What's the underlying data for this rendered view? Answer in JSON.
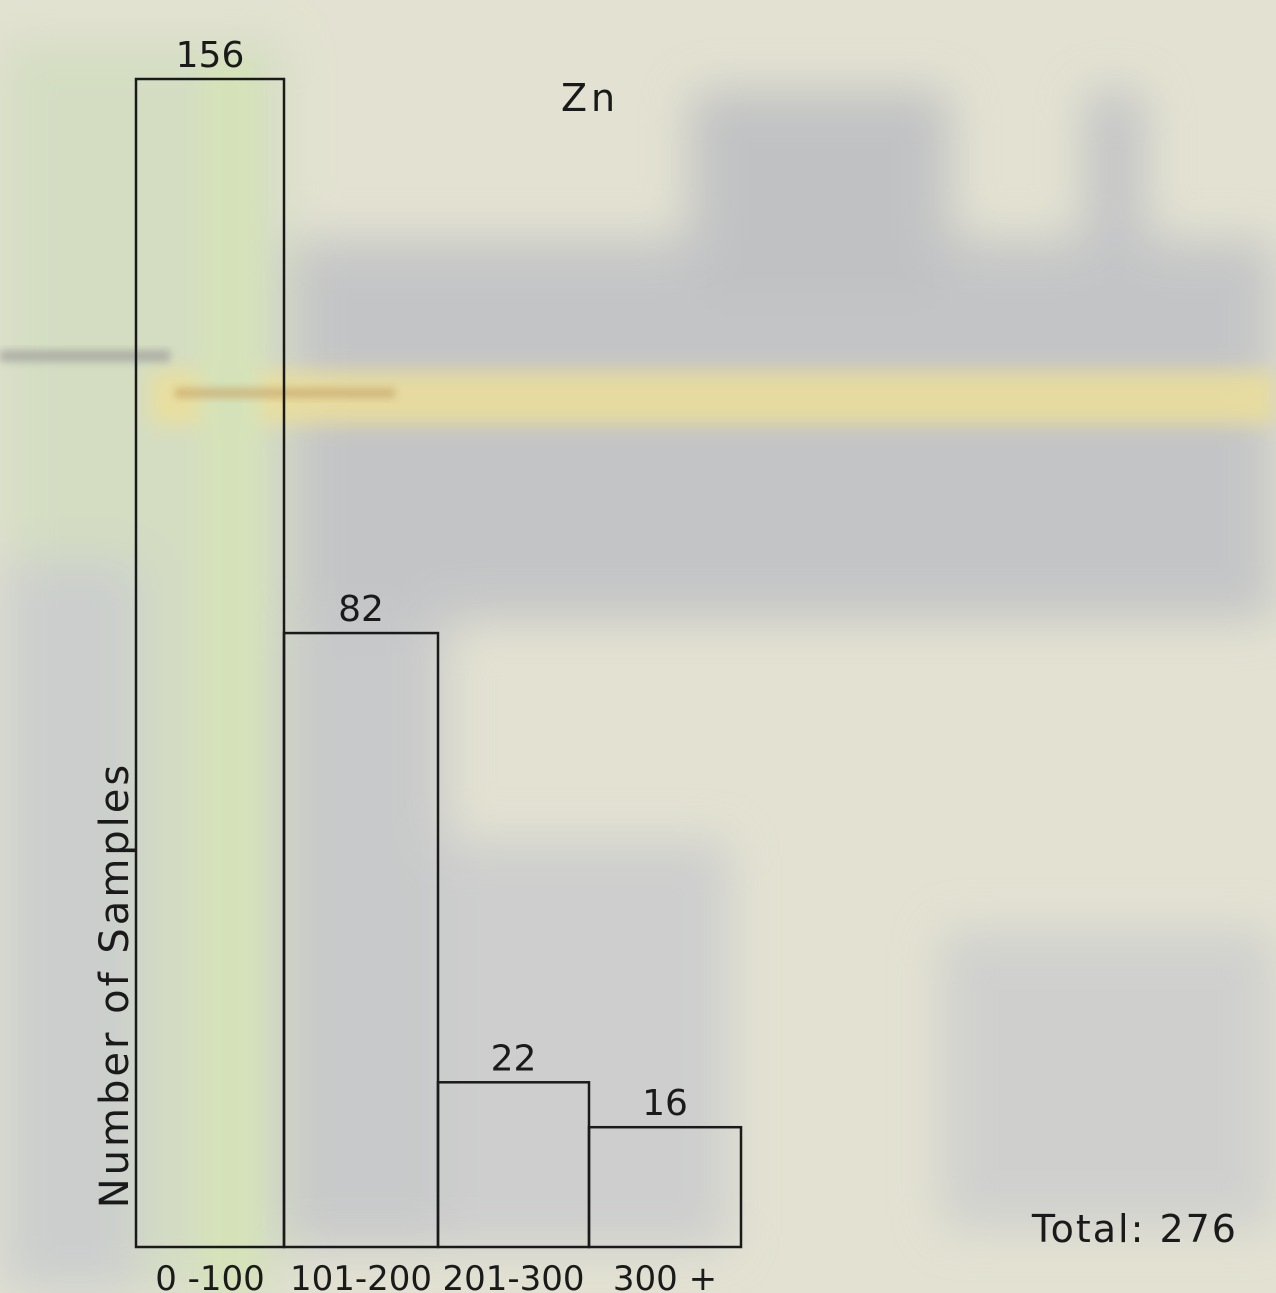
{
  "chart_data": {
    "type": "bar",
    "title": "Zn",
    "xlabel": "",
    "ylabel": "Number of Samples",
    "categories": [
      "0 -100",
      "101-200",
      "201-300",
      "300 +"
    ],
    "values": [
      156,
      82,
      22,
      16
    ],
    "data_labels": [
      "156",
      "82",
      "22",
      "16"
    ],
    "total_label": "Total: 276",
    "ylim": [
      0,
      156
    ],
    "grid": false,
    "bar_fill": "none",
    "bar_stroke": "#1a1a1a"
  }
}
